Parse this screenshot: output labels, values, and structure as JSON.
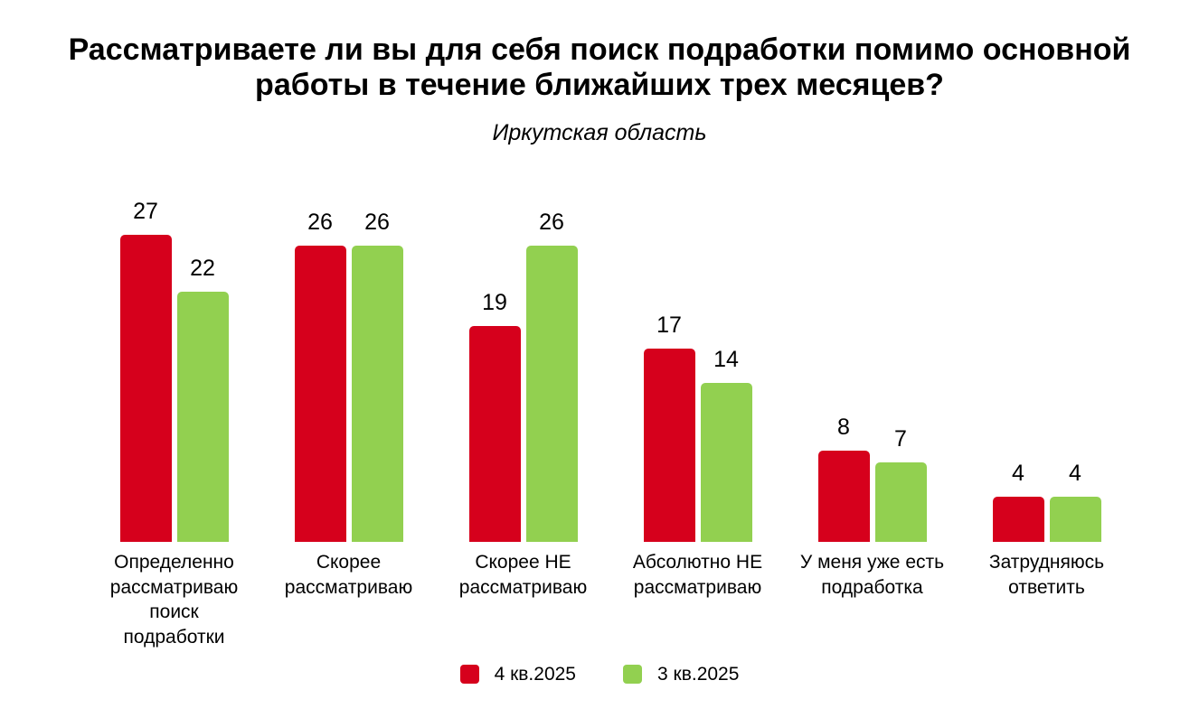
{
  "chart_data": {
    "type": "bar",
    "title": "Рассматриваете ли вы для себя поиск подработки помимо основной работы в течение ближайших трех месяцев?",
    "subtitle": "Иркутская область",
    "categories": [
      "Определенно рассматриваю поиск подработки",
      "Скорее рассматриваю",
      "Скорее НЕ рассматриваю",
      "Абсолютно НЕ рассматриваю",
      "У меня уже есть подработка",
      "Затрудняюсь ответить"
    ],
    "category_lines": [
      [
        "Определенно",
        "рассматриваю",
        "поиск",
        "подработки"
      ],
      [
        "Скорее",
        "рассматриваю"
      ],
      [
        "Скорее НЕ",
        "рассматриваю"
      ],
      [
        "Абсолютно НЕ",
        "рассматриваю"
      ],
      [
        "У меня уже есть",
        "подработка"
      ],
      [
        "Затрудняюсь",
        "ответить"
      ]
    ],
    "series": [
      {
        "name": "4 кв.2025",
        "color": "#D6001C",
        "values": [
          27,
          26,
          19,
          17,
          8,
          4
        ]
      },
      {
        "name": "3 кв.2025",
        "color": "#92D050",
        "values": [
          22,
          26,
          26,
          14,
          7,
          4
        ]
      }
    ],
    "value_labels_shown": true,
    "ylim": [
      0,
      33
    ],
    "grid": false,
    "axes_shown": false,
    "legend_position": "bottom",
    "background_color": "#FFFFFF",
    "text_color": "#000000"
  }
}
